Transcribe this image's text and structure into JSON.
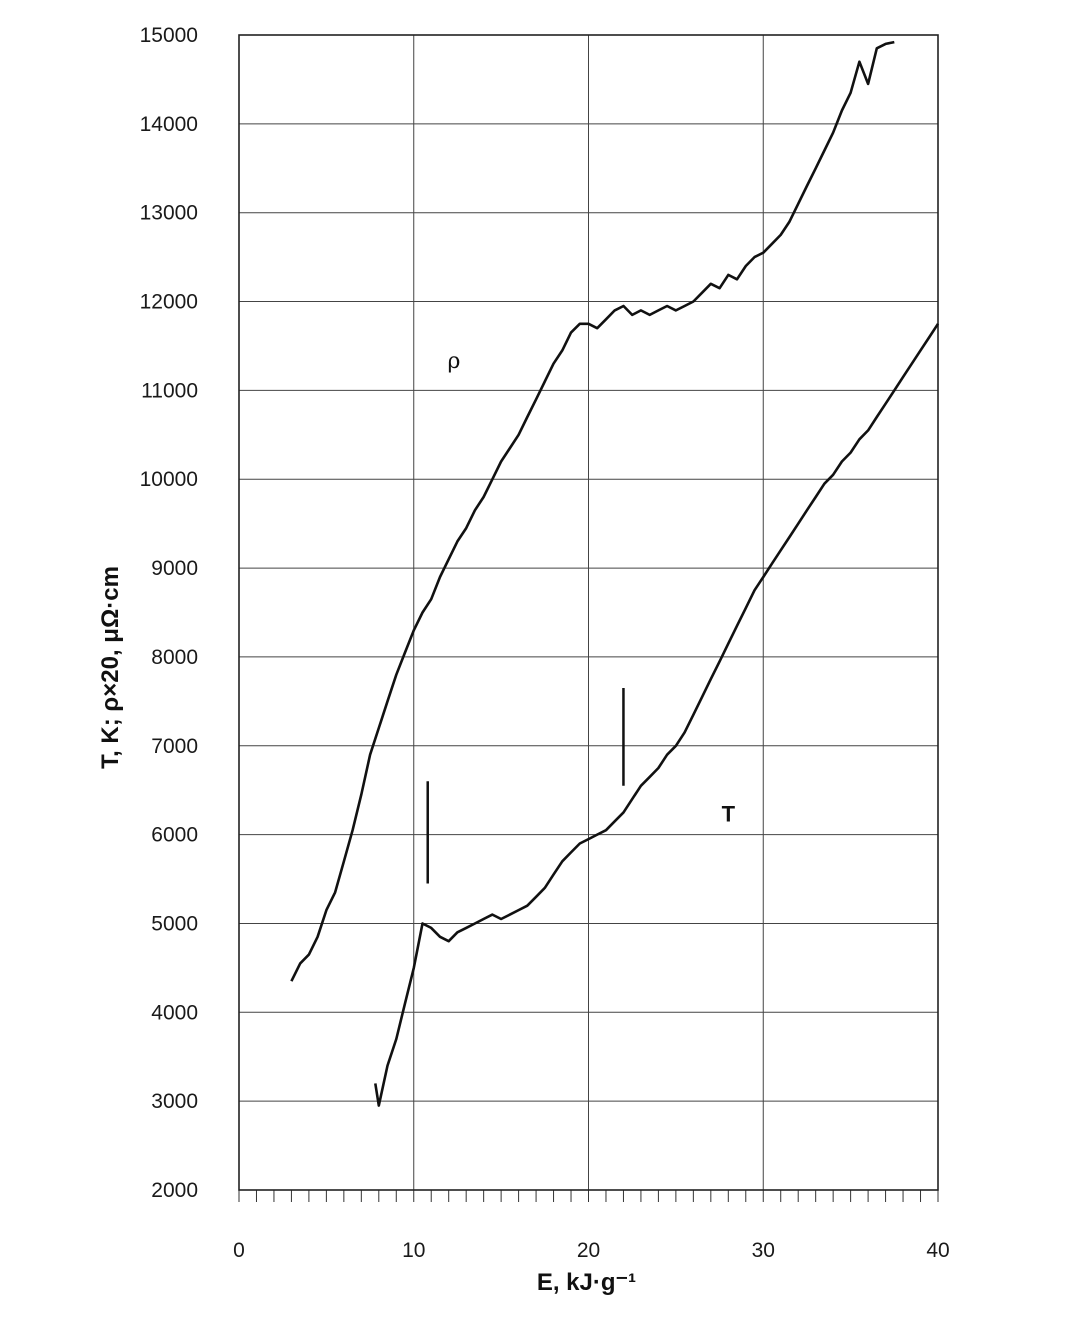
{
  "chart_data": {
    "type": "line",
    "title": "",
    "xlabel": "E, kJ·g⁻¹",
    "ylabel": "T, K; ρ×20, μΩ·cm",
    "xlim": [
      0,
      40
    ],
    "ylim": [
      2000,
      15000
    ],
    "xticks": [
      "0",
      "10",
      "20",
      "30",
      "40"
    ],
    "yticks": [
      "2000",
      "3000",
      "4000",
      "5000",
      "6000",
      "7000",
      "8000",
      "9000",
      "10000",
      "11000",
      "12000",
      "13000",
      "14000",
      "15000"
    ],
    "grid": true,
    "minor_xticks_step": 1,
    "series": [
      {
        "name": "ρ",
        "x": [
          3.0,
          3.5,
          4.0,
          4.5,
          5.0,
          5.5,
          6.0,
          6.5,
          7.0,
          7.5,
          8.0,
          8.5,
          9.0,
          9.5,
          10.0,
          10.5,
          11.0,
          11.5,
          12.0,
          12.5,
          13.0,
          13.5,
          14.0,
          14.5,
          15.0,
          15.5,
          16.0,
          16.5,
          17.0,
          17.5,
          18.0,
          18.5,
          19.0,
          19.5,
          20.0,
          20.5,
          21.0,
          21.5,
          22.0,
          22.5,
          23.0,
          23.5,
          24.0,
          24.5,
          25.0,
          25.5,
          26.0,
          26.5,
          27.0,
          27.5,
          28.0,
          28.5,
          29.0,
          29.5,
          30.0,
          30.5,
          31.0,
          31.5,
          32.0,
          32.5,
          33.0,
          33.5,
          34.0,
          34.5,
          35.0,
          35.5,
          36.0,
          36.5,
          37.0,
          37.5
        ],
        "values": [
          4350,
          4550,
          4650,
          4850,
          5150,
          5350,
          5700,
          6050,
          6450,
          6900,
          7200,
          7500,
          7800,
          8050,
          8300,
          8500,
          8650,
          8900,
          9100,
          9300,
          9450,
          9650,
          9800,
          10000,
          10200,
          10350,
          10500,
          10700,
          10900,
          11100,
          11300,
          11450,
          11650,
          11750,
          11750,
          11700,
          11800,
          11900,
          11950,
          11850,
          11900,
          11850,
          11900,
          11950,
          11900,
          11950,
          12000,
          12100,
          12200,
          12150,
          12300,
          12250,
          12400,
          12500,
          12550,
          12650,
          12750,
          12900,
          13100,
          13300,
          13500,
          13700,
          13900,
          14150,
          14350,
          14700,
          14450,
          14850,
          14900,
          14920
        ]
      },
      {
        "name": "T",
        "x": [
          7.8,
          8.0,
          8.5,
          9.0,
          9.5,
          10.0,
          10.5,
          11.0,
          11.5,
          12.0,
          12.5,
          13.0,
          13.5,
          14.0,
          14.5,
          15.0,
          15.5,
          16.0,
          16.5,
          17.0,
          17.5,
          18.0,
          18.5,
          19.0,
          19.5,
          20.0,
          20.5,
          21.0,
          21.5,
          22.0,
          22.5,
          23.0,
          23.5,
          24.0,
          24.5,
          25.0,
          25.5,
          26.0,
          26.5,
          27.0,
          27.5,
          28.0,
          28.5,
          29.0,
          29.5,
          30.0,
          30.5,
          31.0,
          31.5,
          32.0,
          32.5,
          33.0,
          33.5,
          34.0,
          34.5,
          35.0,
          35.5,
          36.0,
          36.5,
          37.0,
          37.5,
          38.0,
          38.5,
          39.0,
          39.5,
          40.0
        ],
        "values": [
          3200,
          2950,
          3400,
          3700,
          4100,
          4500,
          5000,
          4950,
          4850,
          4800,
          4900,
          4950,
          5000,
          5050,
          5100,
          5050,
          5100,
          5150,
          5200,
          5300,
          5400,
          5550,
          5700,
          5800,
          5900,
          5950,
          6000,
          6050,
          6150,
          6250,
          6400,
          6550,
          6650,
          6750,
          6900,
          7000,
          7150,
          7350,
          7550,
          7750,
          7950,
          8150,
          8350,
          8550,
          8750,
          8900,
          9050,
          9200,
          9350,
          9500,
          9650,
          9800,
          9950,
          10050,
          10200,
          10300,
          10450,
          10550,
          10700,
          10850,
          11000,
          11150,
          11300,
          11450,
          11600,
          11750
        ]
      }
    ],
    "annotations": [
      {
        "text": "ρ",
        "x": 12.3,
        "y": 11250
      },
      {
        "text": "T",
        "x": 28.0,
        "y": 6150
      }
    ],
    "marker_lines": [
      {
        "x": 10.8,
        "y_from": 5450,
        "y_to": 6600
      },
      {
        "x": 22.0,
        "y_from": 6550,
        "y_to": 7650
      }
    ]
  }
}
